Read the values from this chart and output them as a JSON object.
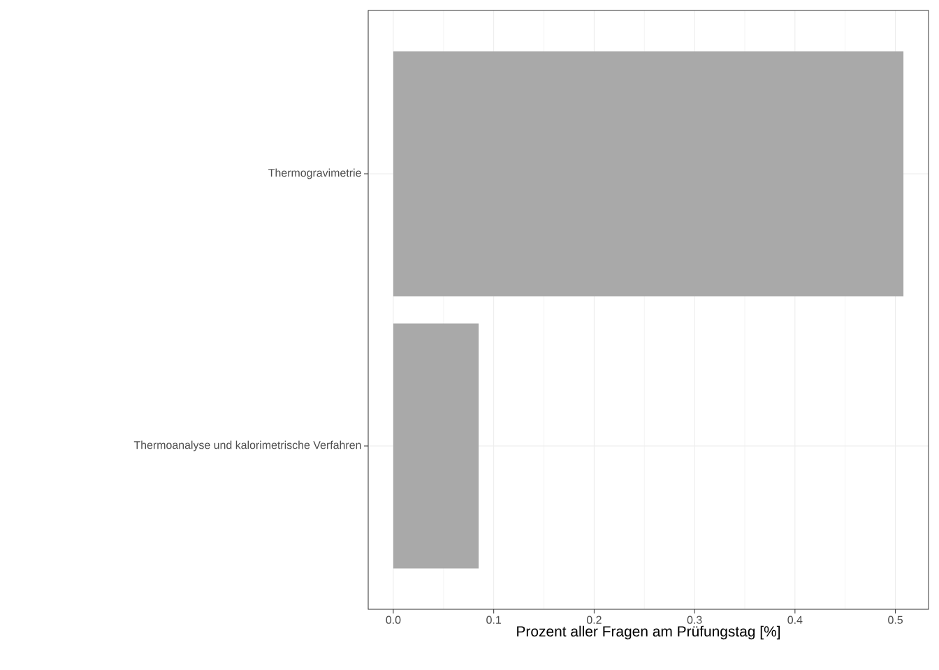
{
  "chart_data": {
    "type": "bar",
    "orientation": "horizontal",
    "xlabel": "Prozent aller Fragen am Prüfungstag [%]",
    "categories": [
      "Thermogravimetrie",
      "Thermoanalyse und kalorimetrische Verfahren"
    ],
    "values": [
      0.508,
      0.085
    ],
    "color": "#a9a9a9",
    "xlim": [
      -0.025,
      0.533
    ],
    "xticks": [
      {
        "value": 0,
        "label": "0.0"
      },
      0.1,
      0.2,
      0.3,
      0.4,
      0.5
    ],
    "grid": true
  }
}
